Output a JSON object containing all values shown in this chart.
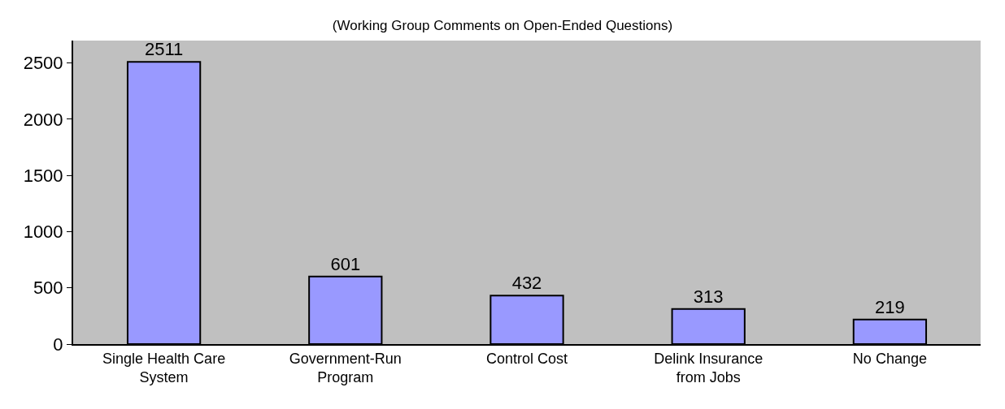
{
  "chart_data": {
    "type": "bar",
    "title": "(Working Group Comments on Open-Ended Questions)",
    "categories": [
      "Single Health Care\nSystem",
      "Government-Run\nProgram",
      "Control Cost",
      "Delink Insurance\nfrom Jobs",
      "No Change"
    ],
    "values": [
      2511,
      601,
      432,
      313,
      219
    ],
    "color": "#9999ff",
    "ylim": [
      0,
      2700
    ],
    "yticks": [
      0,
      500,
      1000,
      1500,
      2000,
      2500
    ],
    "grid": false,
    "legend": false,
    "data_labels": true
  }
}
